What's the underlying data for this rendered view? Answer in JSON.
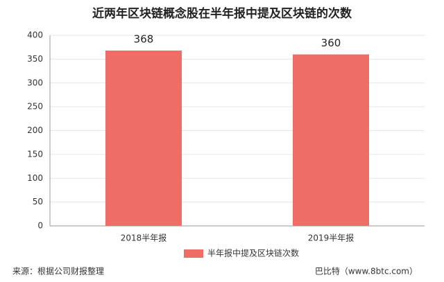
{
  "chart_data": {
    "type": "bar",
    "title": "近两年区块链概念股在半年报中提及区块链的次数",
    "categories": [
      "2018半年报",
      "2019半年报"
    ],
    "series": [
      {
        "name": "半年报中提及区块链次数",
        "color": "#ee6d66",
        "values": [
          368,
          360
        ]
      }
    ],
    "ylim": [
      0,
      400
    ],
    "yticks": [
      0,
      50,
      100,
      150,
      200,
      250,
      300,
      350,
      400
    ],
    "grid": true,
    "legend": "bottom",
    "source": "来源：根据公司财报整理",
    "credit": "巴比特（www.8btc.com）"
  }
}
